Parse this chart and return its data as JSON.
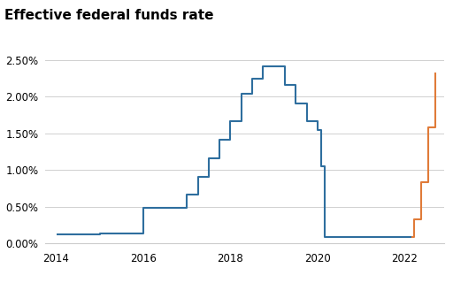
{
  "title": "Effective federal funds rate",
  "title_fontsize": 11,
  "blue_color": "#2e6e9e",
  "orange_color": "#e07b39",
  "background_color": "#ffffff",
  "ylim": [
    0,
    0.027
  ],
  "yticks": [
    0.0,
    0.005,
    0.01,
    0.015,
    0.02,
    0.025
  ],
  "ytick_labels": [
    "0.00%",
    "0.50%",
    "1.00%",
    "1.50%",
    "2.00%",
    "2.50%"
  ],
  "xlim_start": 2013.75,
  "xlim_end": 2022.9,
  "xticks": [
    2014,
    2016,
    2018,
    2020,
    2022
  ],
  "blue_x": [
    2014.0,
    2014.75,
    2015.0,
    2015.92,
    2016.0,
    2016.75,
    2016.92,
    2017.0,
    2017.25,
    2017.5,
    2017.75,
    2018.0,
    2018.25,
    2018.5,
    2018.75,
    2019.0,
    2019.25,
    2019.5,
    2019.75,
    2020.0,
    2020.08,
    2020.17,
    2020.25,
    2022.15
  ],
  "blue_y": [
    0.0012,
    0.0012,
    0.0013,
    0.0013,
    0.0049,
    0.0049,
    0.0049,
    0.0066,
    0.0091,
    0.0116,
    0.0141,
    0.0166,
    0.0204,
    0.0224,
    0.0241,
    0.0241,
    0.0216,
    0.0191,
    0.0166,
    0.0155,
    0.0105,
    0.0009,
    0.0009,
    0.0009
  ],
  "orange_x": [
    2022.15,
    2022.22,
    2022.38,
    2022.54,
    2022.7
  ],
  "orange_y": [
    0.0009,
    0.0033,
    0.0083,
    0.0158,
    0.0233
  ]
}
